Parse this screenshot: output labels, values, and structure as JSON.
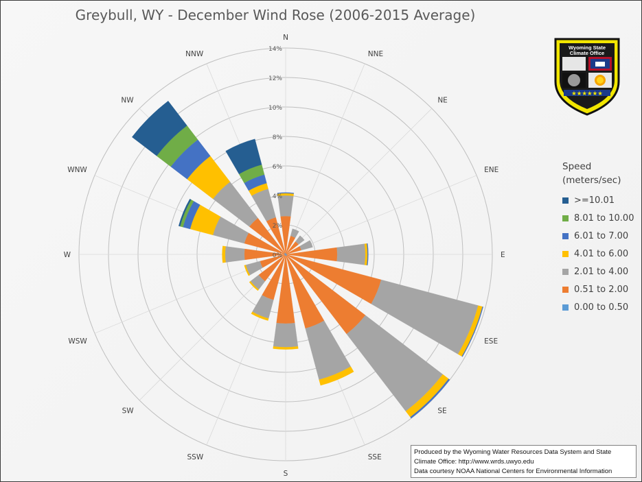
{
  "page": {
    "title": "Greybull, WY - December Wind Rose (2006-2015 Average)"
  },
  "logo": {
    "lines": [
      "Wyoming State",
      "Climate Office"
    ]
  },
  "credit": {
    "line1": "Produced by the Wyoming Water Resources Data System and State",
    "line2": "Climate Office: http://www.wrds.uwyo.edu",
    "line3": "Data courtesy NOAA National Centers for Environmental Information"
  },
  "chart_data": {
    "type": "radar",
    "subtype": "stacked wind rose",
    "title": "Greybull, WY - December Wind Rose (2006-2015 Average)",
    "directions": [
      "N",
      "NNE",
      "NE",
      "ENE",
      "E",
      "ESE",
      "SE",
      "SSE",
      "S",
      "SSW",
      "SW",
      "WSW",
      "W",
      "WNW",
      "NW",
      "NNW"
    ],
    "radial_ticks": [
      "0%",
      "2%",
      "4%",
      "6%",
      "8%",
      "10%",
      "12%",
      "14%"
    ],
    "rlim": [
      0,
      14
    ],
    "unit": "%",
    "grid": true,
    "legend": {
      "position": "right",
      "title": "Speed (meters/sec)",
      "title_lines": [
        "Speed",
        "(meters/sec)"
      ]
    },
    "series": [
      {
        "name": "0.00 to 0.50",
        "color": "#5b9bd5",
        "values": [
          0.1,
          0.0,
          0.0,
          0.0,
          0.1,
          0.1,
          0.1,
          0.1,
          0.1,
          0.1,
          0.0,
          0.0,
          0.1,
          0.1,
          0.1,
          0.1
        ]
      },
      {
        "name": "0.51 to 2.00",
        "color": "#ed7d31",
        "values": [
          2.5,
          1.3,
          1.1,
          1.1,
          3.4,
          6.6,
          6.7,
          5.1,
          4.6,
          3.1,
          2.3,
          1.8,
          2.7,
          2.8,
          3.0,
          2.5
        ]
      },
      {
        "name": "2.01 to 4.00",
        "color": "#a5a5a5",
        "values": [
          1.4,
          0.5,
          0.5,
          0.8,
          1.9,
          6.8,
          6.6,
          3.6,
          1.6,
          1.3,
          0.7,
          1.0,
          1.3,
          2.2,
          3.1,
          2.0
        ]
      },
      {
        "name": "4.01 to 6.00",
        "color": "#ffc000",
        "values": [
          0.15,
          0.0,
          0.0,
          0.0,
          0.15,
          0.3,
          0.5,
          0.4,
          0.15,
          0.15,
          0.1,
          0.1,
          0.2,
          1.6,
          2.2,
          0.4
        ]
      },
      {
        "name": "6.01 to 7.00",
        "color": "#4472c4",
        "values": [
          0.05,
          0.0,
          0.0,
          0.0,
          0.05,
          0.05,
          0.1,
          0.0,
          0.0,
          0.0,
          0.0,
          0.0,
          0.0,
          0.5,
          1.4,
          0.6
        ]
      },
      {
        "name": "8.01 to 10.00",
        "color": "#70ad47",
        "values": [
          0.0,
          0.0,
          0.0,
          0.0,
          0.0,
          0.0,
          0.0,
          0.0,
          0.0,
          0.0,
          0.0,
          0.0,
          0.0,
          0.2,
          1.2,
          0.7
        ]
      },
      {
        "name": ">=10.01",
        "color": "#255e91",
        "values": [
          0.0,
          0.0,
          0.0,
          0.0,
          0.0,
          0.0,
          0.0,
          0.0,
          0.0,
          0.0,
          0.0,
          0.0,
          0.0,
          0.1,
          2.1,
          1.8
        ]
      }
    ]
  }
}
